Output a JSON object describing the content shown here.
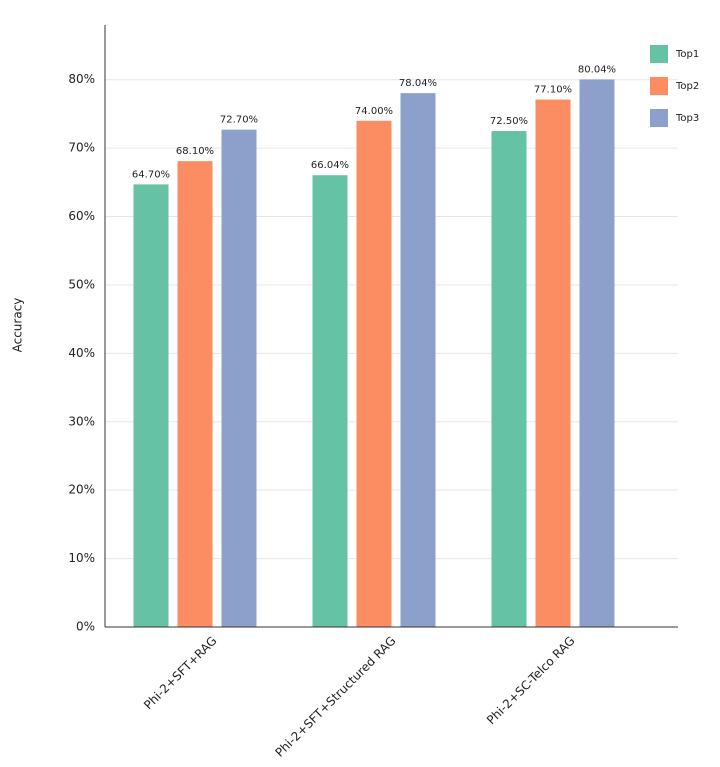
{
  "chart_data": {
    "type": "bar",
    "y_label": "Accuracy",
    "categories": [
      "Phi-2+SFT+RAG",
      "Phi-2+SFT+Structured RAG",
      "Phi-2+SC-Telco RAG"
    ],
    "series": [
      {
        "name": "Top1",
        "color": "#66c2a5",
        "values": [
          64.7,
          66.04,
          72.5
        ],
        "value_labels": [
          "64.70%",
          "66.04%",
          "72.50%"
        ]
      },
      {
        "name": "Top2",
        "color": "#fc8d62",
        "values": [
          68.1,
          74.0,
          77.1
        ],
        "value_labels": [
          "68.10%",
          "74.00%",
          "77.10%"
        ]
      },
      {
        "name": "Top3",
        "color": "#8da0cb",
        "values": [
          72.7,
          78.04,
          80.04
        ],
        "value_labels": [
          "72.70%",
          "78.04%",
          "80.04%"
        ]
      }
    ],
    "ylim": [
      0,
      88
    ],
    "yticks": [
      {
        "value": 0,
        "label": "0%"
      },
      {
        "value": 10,
        "label": "10%"
      },
      {
        "value": 20,
        "label": "20%"
      },
      {
        "value": 30,
        "label": "30%"
      },
      {
        "value": 40,
        "label": "40%"
      },
      {
        "value": 50,
        "label": "50%"
      },
      {
        "value": 60,
        "label": "60%"
      },
      {
        "value": 70,
        "label": "70%"
      },
      {
        "value": 80,
        "label": "80%"
      }
    ],
    "grid": true,
    "legend": "top-right"
  }
}
